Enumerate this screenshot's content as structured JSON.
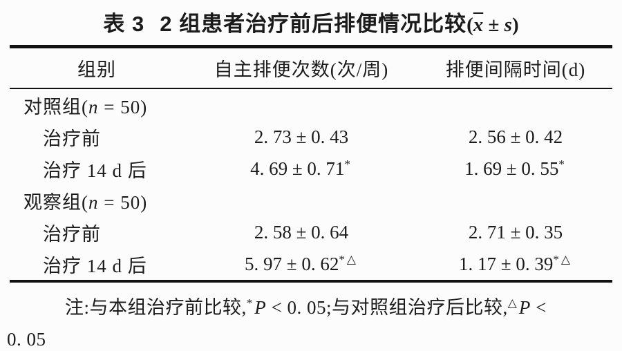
{
  "title": {
    "label": "表 3",
    "text": "2 组患者治疗前后排便情况比较",
    "open": "(",
    "xbar": "x",
    "pm": " ± ",
    "s": "s",
    "close": ")"
  },
  "table": {
    "headers": [
      "组别",
      "自主排便次数(次/周)",
      "排便间隔时间(d)"
    ],
    "rows": [
      {
        "pre": "对照组(",
        "n": "n",
        "post": " = 50)"
      },
      {
        "label": "治疗前",
        "col2": "2. 73 ± 0. 43",
        "col2_sup": "",
        "col3": "2. 56 ± 0. 42",
        "col3_sup": ""
      },
      {
        "label": "治疗 14 d 后",
        "col2": "4. 69 ± 0. 71",
        "col2_sup": "*",
        "col3": "1. 69 ± 0. 55",
        "col3_sup": "*"
      },
      {
        "pre": "观察组(",
        "n": "n",
        "post": " = 50)"
      },
      {
        "label": "治疗前",
        "col2": "2. 58 ± 0. 64",
        "col2_sup": "",
        "col3": "2. 71 ± 0. 35",
        "col3_sup": ""
      },
      {
        "label": "治疗 14 d 后",
        "col2": "5. 97 ± 0. 62",
        "col2_sup": "*△",
        "col3": "1. 17 ± 0. 39",
        "col3_sup": "*△"
      }
    ]
  },
  "footnote": {
    "lead": "注:与本组治疗前比较,",
    "sup1": "*",
    "p1": "P",
    "mid": " < 0. 05;与对照组治疗后比较,",
    "sup2": "△",
    "p2": "P",
    "tail": " <",
    "line2": "0. 05"
  },
  "colors": {
    "text": "#1b1b1b",
    "rule": "#121212",
    "background": "#fcfcfc"
  }
}
